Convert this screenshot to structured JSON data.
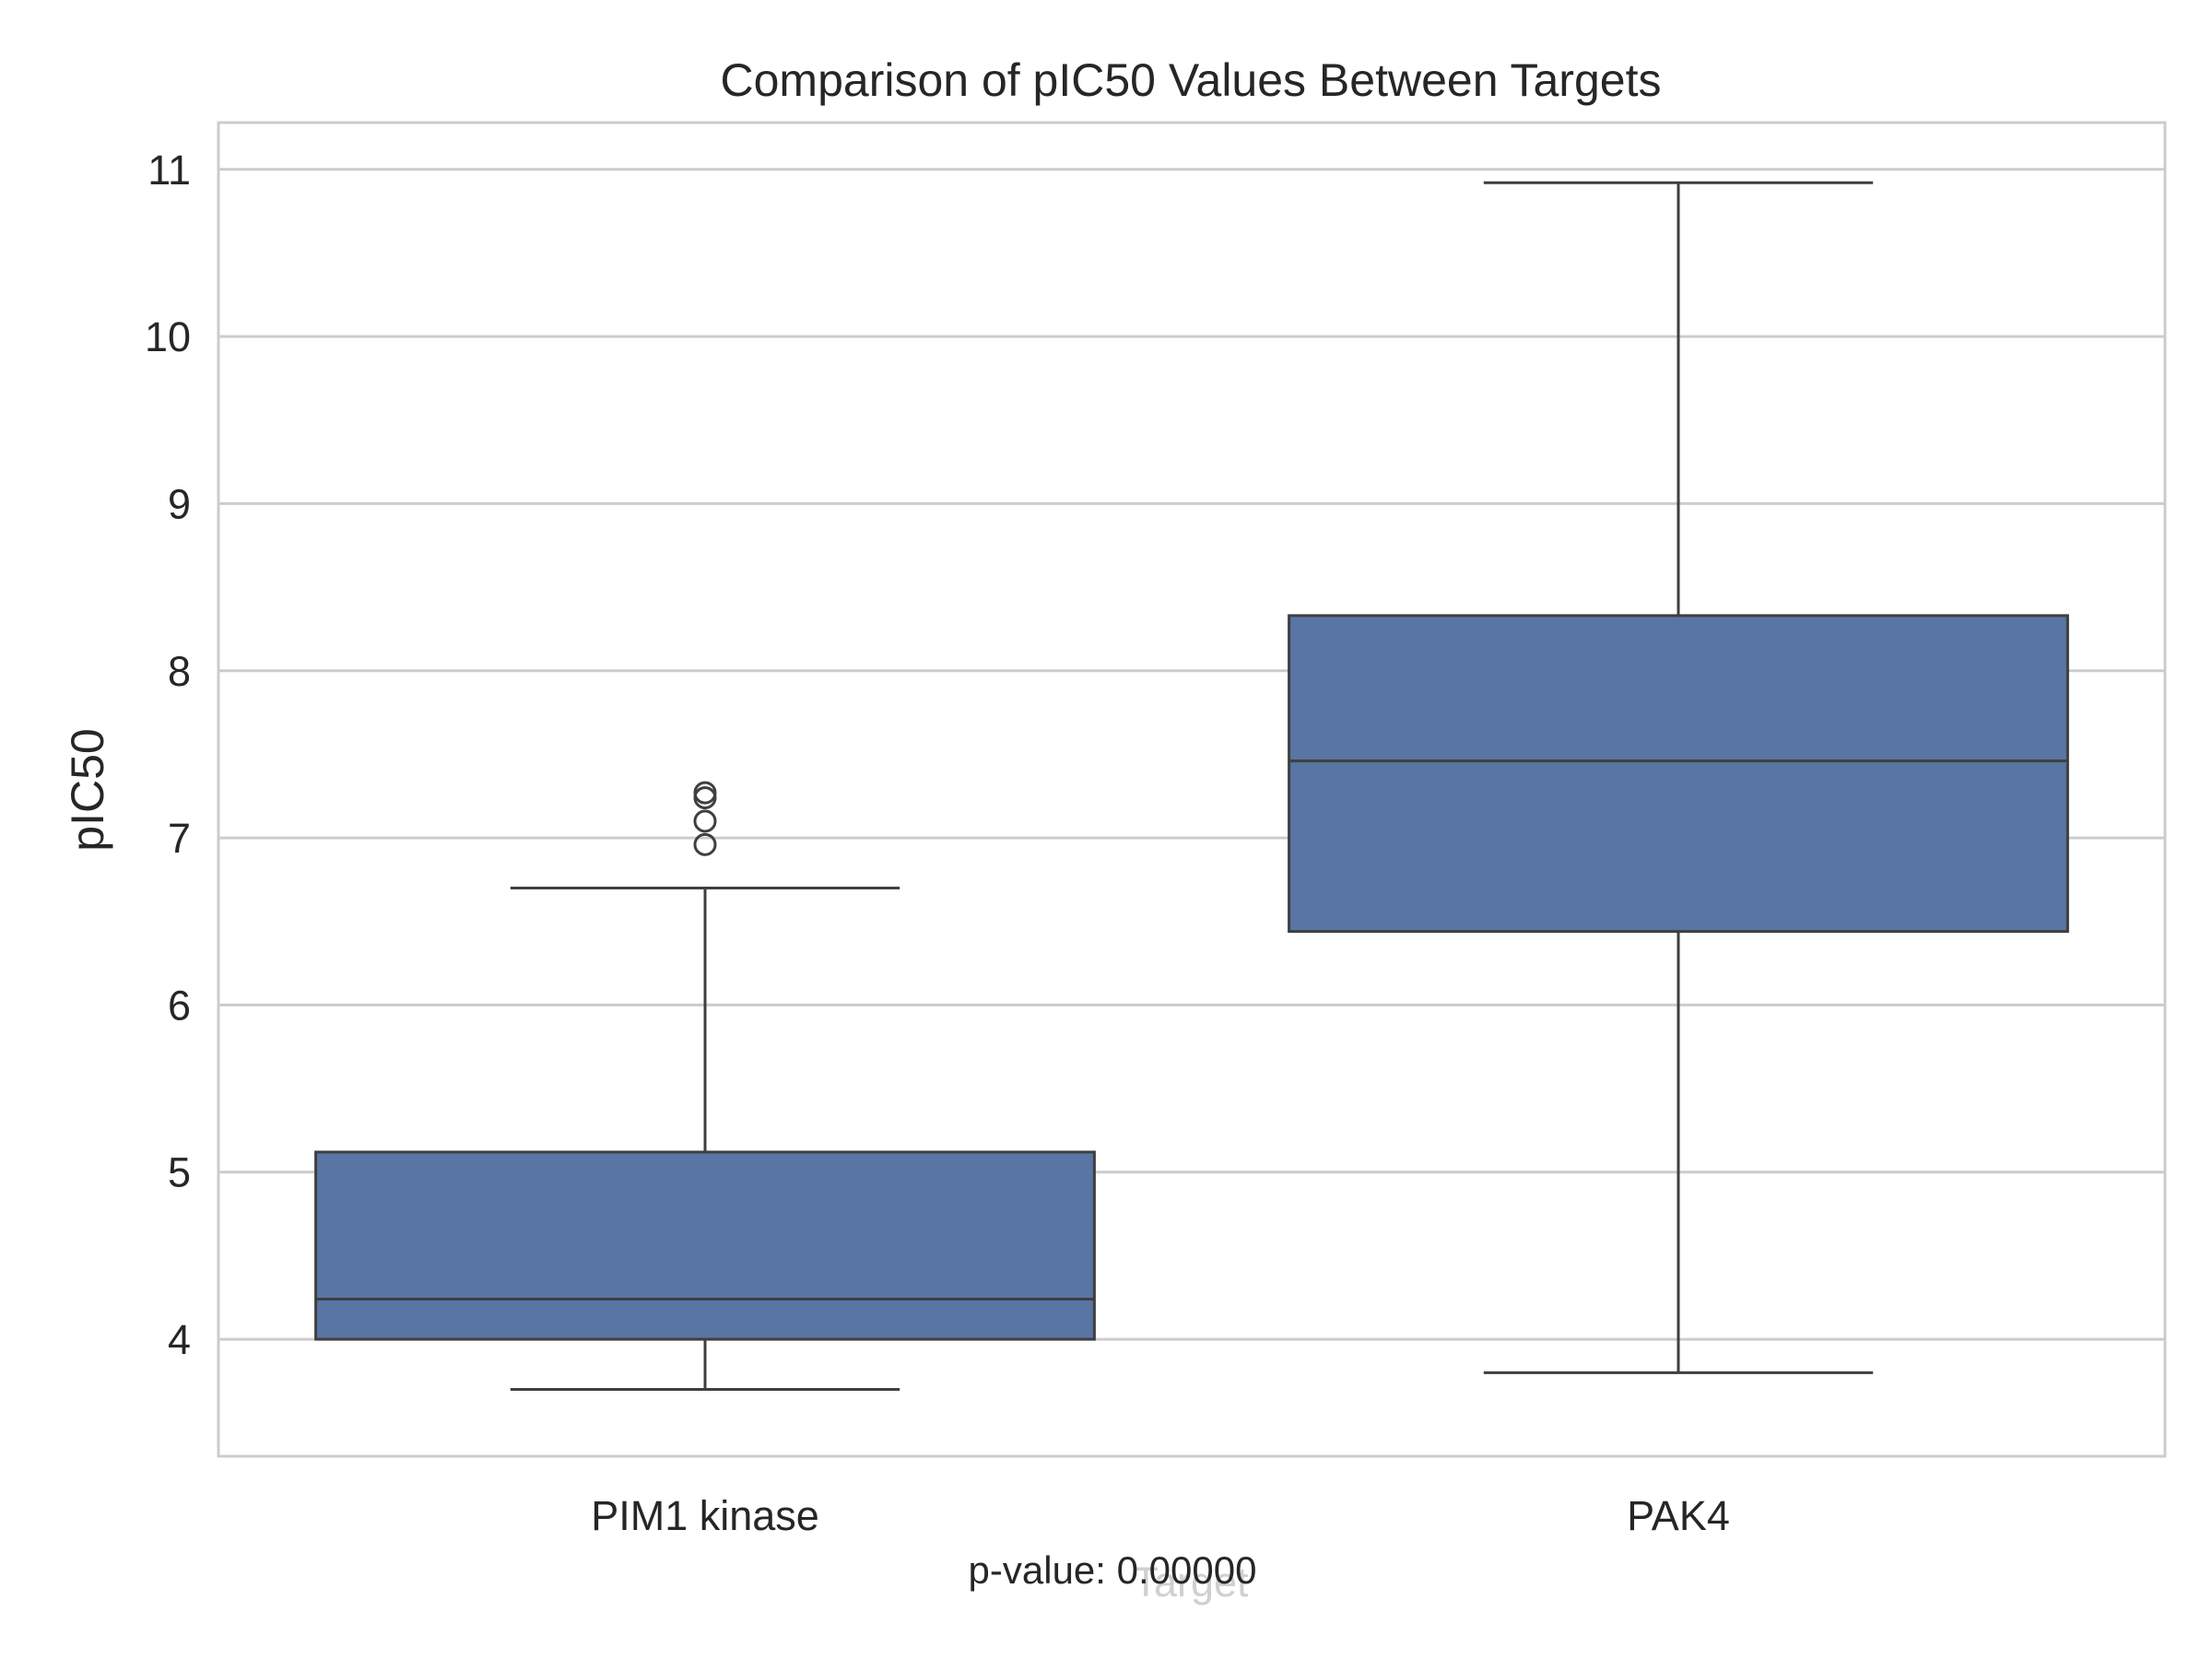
{
  "chart_data": {
    "type": "box",
    "title": "Comparison of pIC50 Values Between Targets",
    "xlabel": "Target",
    "ylabel": "pIC50",
    "ylim": [
      3.3,
      11.28
    ],
    "yticks": [
      4,
      5,
      6,
      7,
      8,
      9,
      10,
      11
    ],
    "grid": "horizontal",
    "box_color": "#5975a4",
    "line_color": "#3f3f3f",
    "grid_color": "#cccccc",
    "categories": [
      "PIM1 kinase",
      "PAK4"
    ],
    "boxes": [
      {
        "name": "PIM1 kinase",
        "whisker_low": 3.7,
        "q1": 4.0,
        "median": 4.24,
        "q3": 5.12,
        "whisker_high": 6.7,
        "outliers": [
          6.96,
          7.1,
          7.24,
          7.27
        ]
      },
      {
        "name": "PAK4",
        "whisker_low": 3.8,
        "q1": 6.44,
        "median": 7.46,
        "q3": 8.33,
        "whisker_high": 10.92,
        "outliers": []
      }
    ],
    "annotation": "p-value: 0.00000"
  }
}
